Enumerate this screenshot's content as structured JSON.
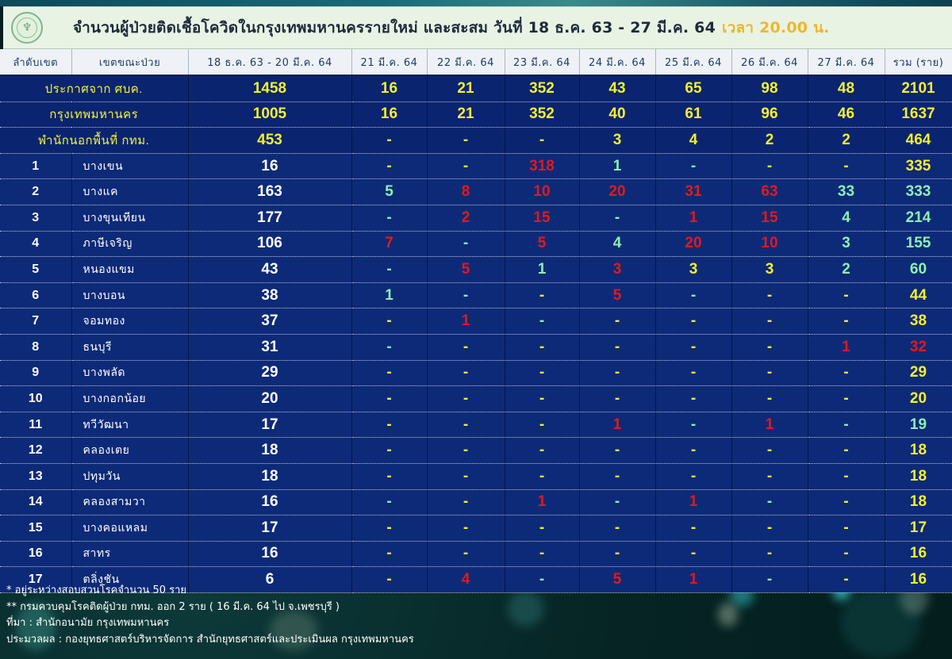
{
  "title": {
    "main": "จำนวนผู้ป่วยติดเชื้อโควิดในกรุงเทพมหานครรายใหม่ และสะสม วันที่ 18 ธ.ค. 63 - 27 มี.ค. 64",
    "time": "เวลา 20.00 น."
  },
  "colors": {
    "table_bg": "#0d2a78",
    "yellow": "#f4f02e",
    "red": "#e11a1a",
    "green": "#8ef0b0",
    "time_accent": "#f0b72a",
    "title_bar_bg": "#e8f3e4"
  },
  "icons": {
    "logo": "bangkok-metropolitan-seal-icon"
  },
  "headers": [
    "ลำดับเขต",
    "เขตขณะป่วย",
    "18 ธ.ค. 63 - 20 มี.ค. 64",
    "21 มี.ค. 64",
    "22 มี.ค. 64",
    "23 มี.ค. 64",
    "24 มี.ค. 64",
    "25 มี.ค. 64",
    "26 มี.ค. 64",
    "27 มี.ค. 64",
    "รวม (ราย)"
  ],
  "summary_rows": [
    {
      "label": "ประกาศจาก ศบค.",
      "values": [
        "1458",
        "16",
        "21",
        "352",
        "43",
        "65",
        "98",
        "48",
        "2101"
      ],
      "colors": [
        "y",
        "y",
        "y",
        "y",
        "y",
        "y",
        "y",
        "y",
        "y"
      ]
    },
    {
      "label": "กรุงเทพมหานคร",
      "values": [
        "1005",
        "16",
        "21",
        "352",
        "40",
        "61",
        "96",
        "46",
        "1637"
      ],
      "colors": [
        "y",
        "y",
        "y",
        "y",
        "y",
        "y",
        "y",
        "y",
        "y"
      ]
    },
    {
      "label": "พำนักนอกพื้นที่ กทม.",
      "values": [
        "453",
        "-",
        "-",
        "-",
        "3",
        "4",
        "2",
        "2",
        "464"
      ],
      "colors": [
        "y",
        "y",
        "y",
        "y",
        "y",
        "y",
        "y",
        "y",
        "y"
      ]
    }
  ],
  "district_rows": [
    {
      "rank": "1",
      "name": "บางเขน",
      "values": [
        "16",
        "-",
        "-",
        "318",
        "1",
        "-",
        "-",
        "-",
        "335"
      ],
      "colors": [
        "w",
        "y",
        "y",
        "r",
        "g",
        "g",
        "y",
        "y",
        "y"
      ]
    },
    {
      "rank": "2",
      "name": "บางแค",
      "values": [
        "163",
        "5",
        "8",
        "10",
        "20",
        "31",
        "63",
        "33",
        "333"
      ],
      "colors": [
        "w",
        "g",
        "r",
        "r",
        "r",
        "r",
        "r",
        "g",
        "g"
      ]
    },
    {
      "rank": "3",
      "name": "บางขุนเทียน",
      "values": [
        "177",
        "-",
        "2",
        "15",
        "-",
        "1",
        "15",
        "4",
        "214"
      ],
      "colors": [
        "w",
        "g",
        "r",
        "r",
        "g",
        "r",
        "r",
        "g",
        "g"
      ]
    },
    {
      "rank": "4",
      "name": "ภาษีเจริญ",
      "values": [
        "106",
        "7",
        "-",
        "5",
        "4",
        "20",
        "10",
        "3",
        "155"
      ],
      "colors": [
        "w",
        "r",
        "g",
        "r",
        "g",
        "r",
        "r",
        "g",
        "g"
      ]
    },
    {
      "rank": "5",
      "name": "หนองแขม",
      "values": [
        "43",
        "-",
        "5",
        "1",
        "3",
        "3",
        "3",
        "2",
        "60"
      ],
      "colors": [
        "w",
        "g",
        "r",
        "g",
        "r",
        "y",
        "y",
        "g",
        "g"
      ]
    },
    {
      "rank": "6",
      "name": "บางบอน",
      "values": [
        "38",
        "1",
        "-",
        "-",
        "5",
        "-",
        "-",
        "-",
        "44"
      ],
      "colors": [
        "w",
        "g",
        "g",
        "y",
        "r",
        "g",
        "y",
        "y",
        "y"
      ]
    },
    {
      "rank": "7",
      "name": "จอมทอง",
      "values": [
        "37",
        "-",
        "1",
        "-",
        "-",
        "-",
        "-",
        "-",
        "38"
      ],
      "colors": [
        "w",
        "y",
        "r",
        "g",
        "y",
        "y",
        "y",
        "y",
        "y"
      ]
    },
    {
      "rank": "8",
      "name": "ธนบุรี",
      "values": [
        "31",
        "-",
        "-",
        "-",
        "-",
        "-",
        "-",
        "1",
        "32"
      ],
      "colors": [
        "w",
        "g",
        "y",
        "y",
        "y",
        "y",
        "y",
        "r",
        "r"
      ]
    },
    {
      "rank": "9",
      "name": "บางพลัด",
      "values": [
        "29",
        "-",
        "-",
        "-",
        "-",
        "-",
        "-",
        "-",
        "29"
      ],
      "colors": [
        "w",
        "y",
        "y",
        "y",
        "y",
        "y",
        "y",
        "y",
        "y"
      ]
    },
    {
      "rank": "10",
      "name": "บางกอกน้อย",
      "values": [
        "20",
        "-",
        "-",
        "-",
        "-",
        "-",
        "-",
        "-",
        "20"
      ],
      "colors": [
        "w",
        "y",
        "y",
        "y",
        "y",
        "y",
        "y",
        "y",
        "y"
      ]
    },
    {
      "rank": "11",
      "name": "ทวีวัฒนา",
      "values": [
        "17",
        "-",
        "-",
        "-",
        "1",
        "-",
        "1",
        "-",
        "19"
      ],
      "colors": [
        "w",
        "y",
        "y",
        "y",
        "r",
        "g",
        "r",
        "g",
        "g"
      ]
    },
    {
      "rank": "12",
      "name": "คลองเตย",
      "values": [
        "18",
        "-",
        "-",
        "-",
        "-",
        "-",
        "-",
        "-",
        "18"
      ],
      "colors": [
        "w",
        "y",
        "y",
        "y",
        "y",
        "y",
        "y",
        "y",
        "y"
      ]
    },
    {
      "rank": "13",
      "name": "ปทุมวัน",
      "values": [
        "18",
        "-",
        "-",
        "-",
        "-",
        "-",
        "-",
        "-",
        "18"
      ],
      "colors": [
        "w",
        "y",
        "y",
        "y",
        "y",
        "y",
        "y",
        "y",
        "y"
      ]
    },
    {
      "rank": "14",
      "name": "คลองสามวา",
      "values": [
        "16",
        "-",
        "-",
        "1",
        "-",
        "1",
        "-",
        "-",
        "18"
      ],
      "colors": [
        "w",
        "g",
        "y",
        "r",
        "g",
        "r",
        "g",
        "y",
        "y"
      ]
    },
    {
      "rank": "15",
      "name": "บางคอแหลม",
      "values": [
        "17",
        "-",
        "-",
        "-",
        "-",
        "-",
        "-",
        "-",
        "17"
      ],
      "colors": [
        "w",
        "y",
        "y",
        "y",
        "y",
        "y",
        "y",
        "y",
        "y"
      ]
    },
    {
      "rank": "16",
      "name": "สาทร",
      "values": [
        "16",
        "-",
        "-",
        "-",
        "-",
        "-",
        "-",
        "-",
        "16"
      ],
      "colors": [
        "w",
        "y",
        "y",
        "y",
        "y",
        "y",
        "y",
        "y",
        "y"
      ]
    },
    {
      "rank": "17",
      "name": "ตลิ่งชัน",
      "values": [
        "6",
        "-",
        "4",
        "-",
        "5",
        "1",
        "-",
        "-",
        "16"
      ],
      "colors": [
        "w",
        "y",
        "r",
        "g",
        "r",
        "r",
        "g",
        "y",
        "y"
      ]
    }
  ],
  "notes": [
    "* อยู่ระหว่างสอบสวนโรคจำนวน 50 ราย",
    "** กรมควบคุมโรคติดผู้ป่วย กทม. ออก 2 ราย ( 16 มี.ค. 64 ไป จ.เพชรบุรี )",
    "ที่มา : สำนักอนามัย กรุงเทพมหานคร",
    "ประมวลผล : กองยุทธศาสตร์บริหารจัดการ สำนักยุทธศาสตร์และประเมินผล กรุงเทพมหานคร"
  ]
}
